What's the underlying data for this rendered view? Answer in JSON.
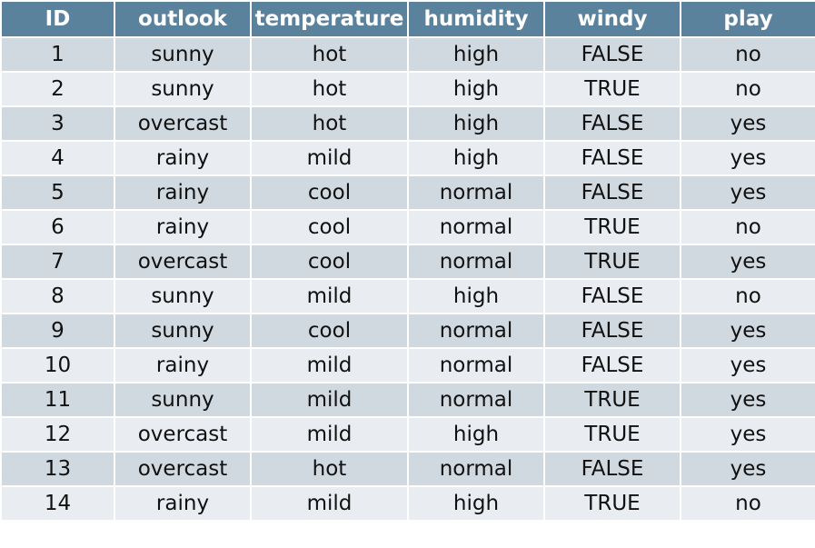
{
  "table": {
    "header": [
      "ID",
      "outlook",
      "temperature",
      "humidity",
      "windy",
      "play"
    ],
    "rows": [
      [
        "1",
        "sunny",
        "hot",
        "high",
        "FALSE",
        "no"
      ],
      [
        "2",
        "sunny",
        "hot",
        "high",
        "TRUE",
        "no"
      ],
      [
        "3",
        "overcast",
        "hot",
        "high",
        "FALSE",
        "yes"
      ],
      [
        "4",
        "rainy",
        "mild",
        "high",
        "FALSE",
        "yes"
      ],
      [
        "5",
        "rainy",
        "cool",
        "normal",
        "FALSE",
        "yes"
      ],
      [
        "6",
        "rainy",
        "cool",
        "normal",
        "TRUE",
        "no"
      ],
      [
        "7",
        "overcast",
        "cool",
        "normal",
        "TRUE",
        "yes"
      ],
      [
        "8",
        "sunny",
        "mild",
        "high",
        "FALSE",
        "no"
      ],
      [
        "9",
        "sunny",
        "cool",
        "normal",
        "FALSE",
        "yes"
      ],
      [
        "10",
        "rainy",
        "mild",
        "normal",
        "FALSE",
        "yes"
      ],
      [
        "11",
        "sunny",
        "mild",
        "normal",
        "TRUE",
        "yes"
      ],
      [
        "12",
        "overcast",
        "mild",
        "high",
        "TRUE",
        "yes"
      ],
      [
        "13",
        "overcast",
        "hot",
        "normal",
        "FALSE",
        "yes"
      ],
      [
        "14",
        "rainy",
        "mild",
        "high",
        "TRUE",
        "no"
      ]
    ]
  }
}
